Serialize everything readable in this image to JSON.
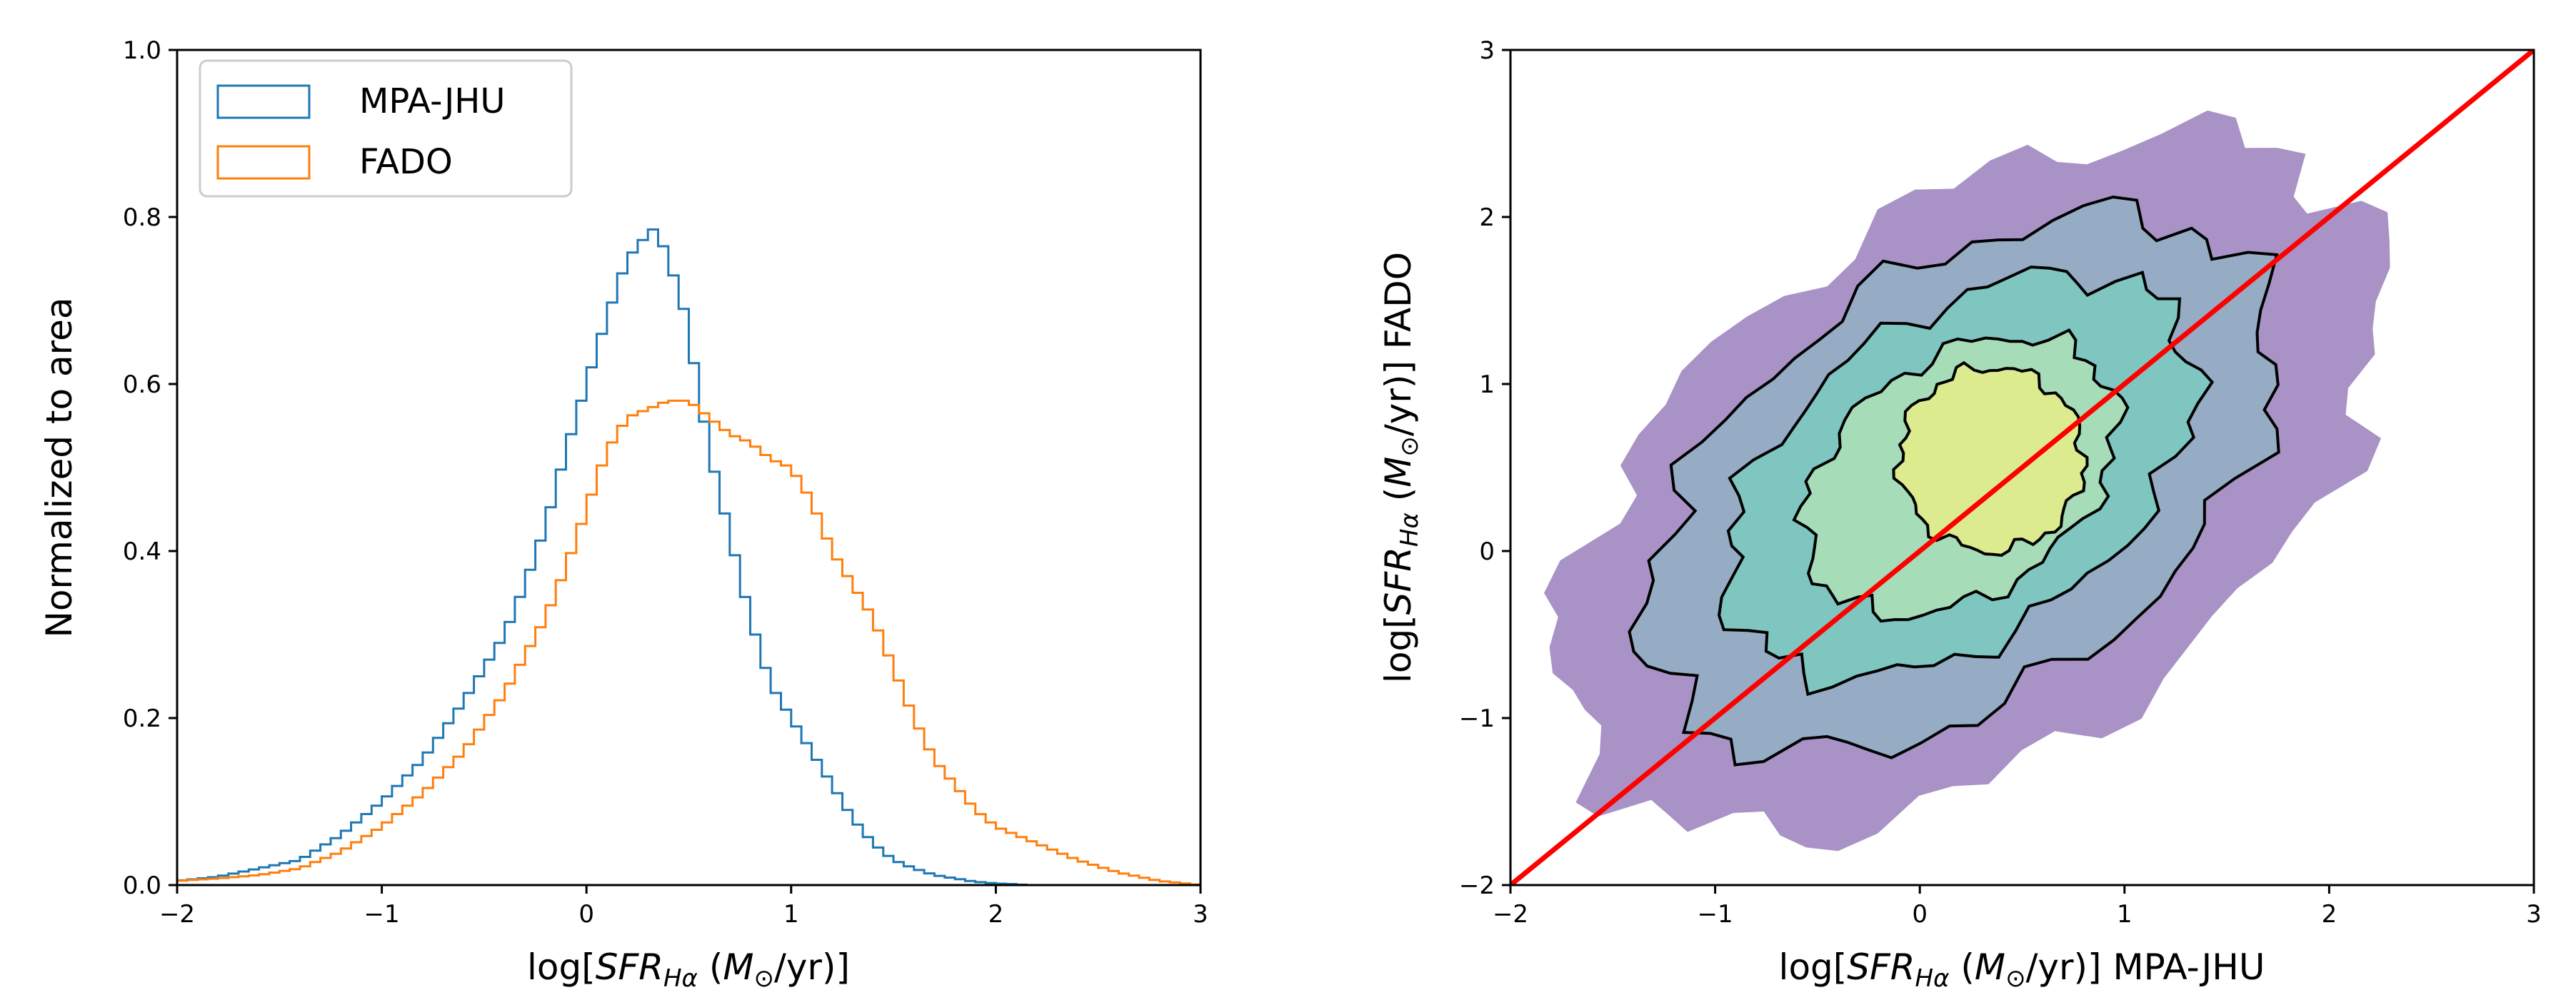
{
  "colors": {
    "mpa": "#1f77b4",
    "fado": "#ff7f0e",
    "identity_line": "#ff0000",
    "contour_line": "#000000",
    "levels": [
      "#a993c6",
      "#95acc4",
      "#7fc6c0",
      "#a6dcb8",
      "#dceb8e"
    ]
  },
  "chart_data": [
    {
      "type": "histogram",
      "ylabel": "Normalized to area",
      "xlabel": "log[SFR_Hα (M_⊙/yr)]",
      "xlim": [
        -2,
        3
      ],
      "ylim": [
        0,
        1
      ],
      "x_ticks": [
        "−2",
        "−1",
        "0",
        "1",
        "2",
        "3"
      ],
      "y_ticks": [
        "0.0",
        "0.2",
        "0.4",
        "0.6",
        "0.8",
        "1.0"
      ],
      "legend_position": "upper-left",
      "bin_width": 0.05,
      "series": [
        {
          "name": "MPA-JHU",
          "x": [
            -2.0,
            -1.8,
            -1.6,
            -1.4,
            -1.2,
            -1.0,
            -0.8,
            -0.6,
            -0.4,
            -0.3,
            -0.2,
            -0.1,
            0.0,
            0.1,
            0.2,
            0.3,
            0.35,
            0.4,
            0.45,
            0.5,
            0.6,
            0.7,
            0.8,
            0.9,
            1.0,
            1.1,
            1.2,
            1.3,
            1.4,
            1.5,
            1.6,
            1.7,
            1.8,
            1.9,
            2.0,
            2.1,
            2.15
          ],
          "y": [
            0.005,
            0.01,
            0.02,
            0.03,
            0.06,
            0.1,
            0.15,
            0.22,
            0.3,
            0.36,
            0.43,
            0.52,
            0.6,
            0.68,
            0.75,
            0.78,
            0.79,
            0.74,
            0.72,
            0.66,
            0.52,
            0.42,
            0.32,
            0.24,
            0.2,
            0.16,
            0.12,
            0.08,
            0.05,
            0.03,
            0.02,
            0.012,
            0.008,
            0.004,
            0.002,
            0.001,
            0.0
          ]
        },
        {
          "name": "FADO",
          "x": [
            -2.0,
            -1.8,
            -1.6,
            -1.4,
            -1.2,
            -1.0,
            -0.8,
            -0.6,
            -0.4,
            -0.2,
            -0.1,
            0.0,
            0.1,
            0.2,
            0.3,
            0.4,
            0.5,
            0.6,
            0.7,
            0.8,
            0.9,
            1.0,
            1.1,
            1.2,
            1.3,
            1.4,
            1.5,
            1.6,
            1.7,
            1.8,
            1.9,
            2.0,
            2.2,
            2.4,
            2.6,
            2.8,
            3.0
          ],
          "y": [
            0.005,
            0.008,
            0.012,
            0.02,
            0.04,
            0.07,
            0.11,
            0.16,
            0.23,
            0.32,
            0.38,
            0.45,
            0.52,
            0.56,
            0.57,
            0.58,
            0.58,
            0.56,
            0.54,
            0.53,
            0.51,
            0.5,
            0.46,
            0.4,
            0.36,
            0.32,
            0.26,
            0.2,
            0.15,
            0.12,
            0.09,
            0.07,
            0.05,
            0.03,
            0.015,
            0.005,
            0.0
          ]
        }
      ]
    },
    {
      "type": "contour",
      "xlabel": "log[SFR_Hα (M_⊙/yr)] MPA-JHU",
      "ylabel": "log[SFR_Hα (M_⊙/yr)] FADO",
      "xlim": [
        -2,
        3
      ],
      "ylim": [
        -2,
        3
      ],
      "x_ticks": [
        "−2",
        "−1",
        "0",
        "1",
        "2",
        "3"
      ],
      "y_ticks": [
        "−2",
        "−1",
        "0",
        "1",
        "2",
        "3"
      ],
      "identity_line": {
        "x": [
          -2,
          3
        ],
        "y": [
          -2,
          3
        ]
      },
      "levels": [
        {
          "cx": 0.25,
          "cy": 0.4,
          "rx": 2.3,
          "ry": 1.6
        },
        {
          "cx": 0.2,
          "cy": 0.4,
          "rx": 1.75,
          "ry": 1.25
        },
        {
          "cx": 0.2,
          "cy": 0.45,
          "rx": 1.3,
          "ry": 0.95
        },
        {
          "cx": 0.2,
          "cy": 0.45,
          "rx": 0.85,
          "ry": 0.7
        },
        {
          "cx": 0.35,
          "cy": 0.55,
          "rx": 0.45,
          "ry": 0.55
        }
      ]
    }
  ],
  "legend": {
    "items": [
      {
        "label": "MPA-JHU",
        "color": "#1f77b4"
      },
      {
        "label": "FADO",
        "color": "#ff7f0e"
      }
    ]
  }
}
